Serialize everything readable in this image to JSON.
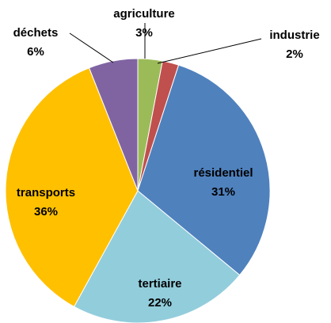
{
  "chart_data": {
    "type": "pie",
    "categories": [
      "agriculture",
      "industrie",
      "résidentiel",
      "tertiaire",
      "transports",
      "déchets"
    ],
    "values": [
      3,
      2,
      31,
      22,
      36,
      6
    ],
    "value_labels": [
      "3%",
      "2%",
      "31%",
      "22%",
      "36%",
      "6%"
    ],
    "colors": [
      "#9bbb59",
      "#c0504d",
      "#4f81bd",
      "#92cddc",
      "#ffc000",
      "#8064a2"
    ]
  }
}
